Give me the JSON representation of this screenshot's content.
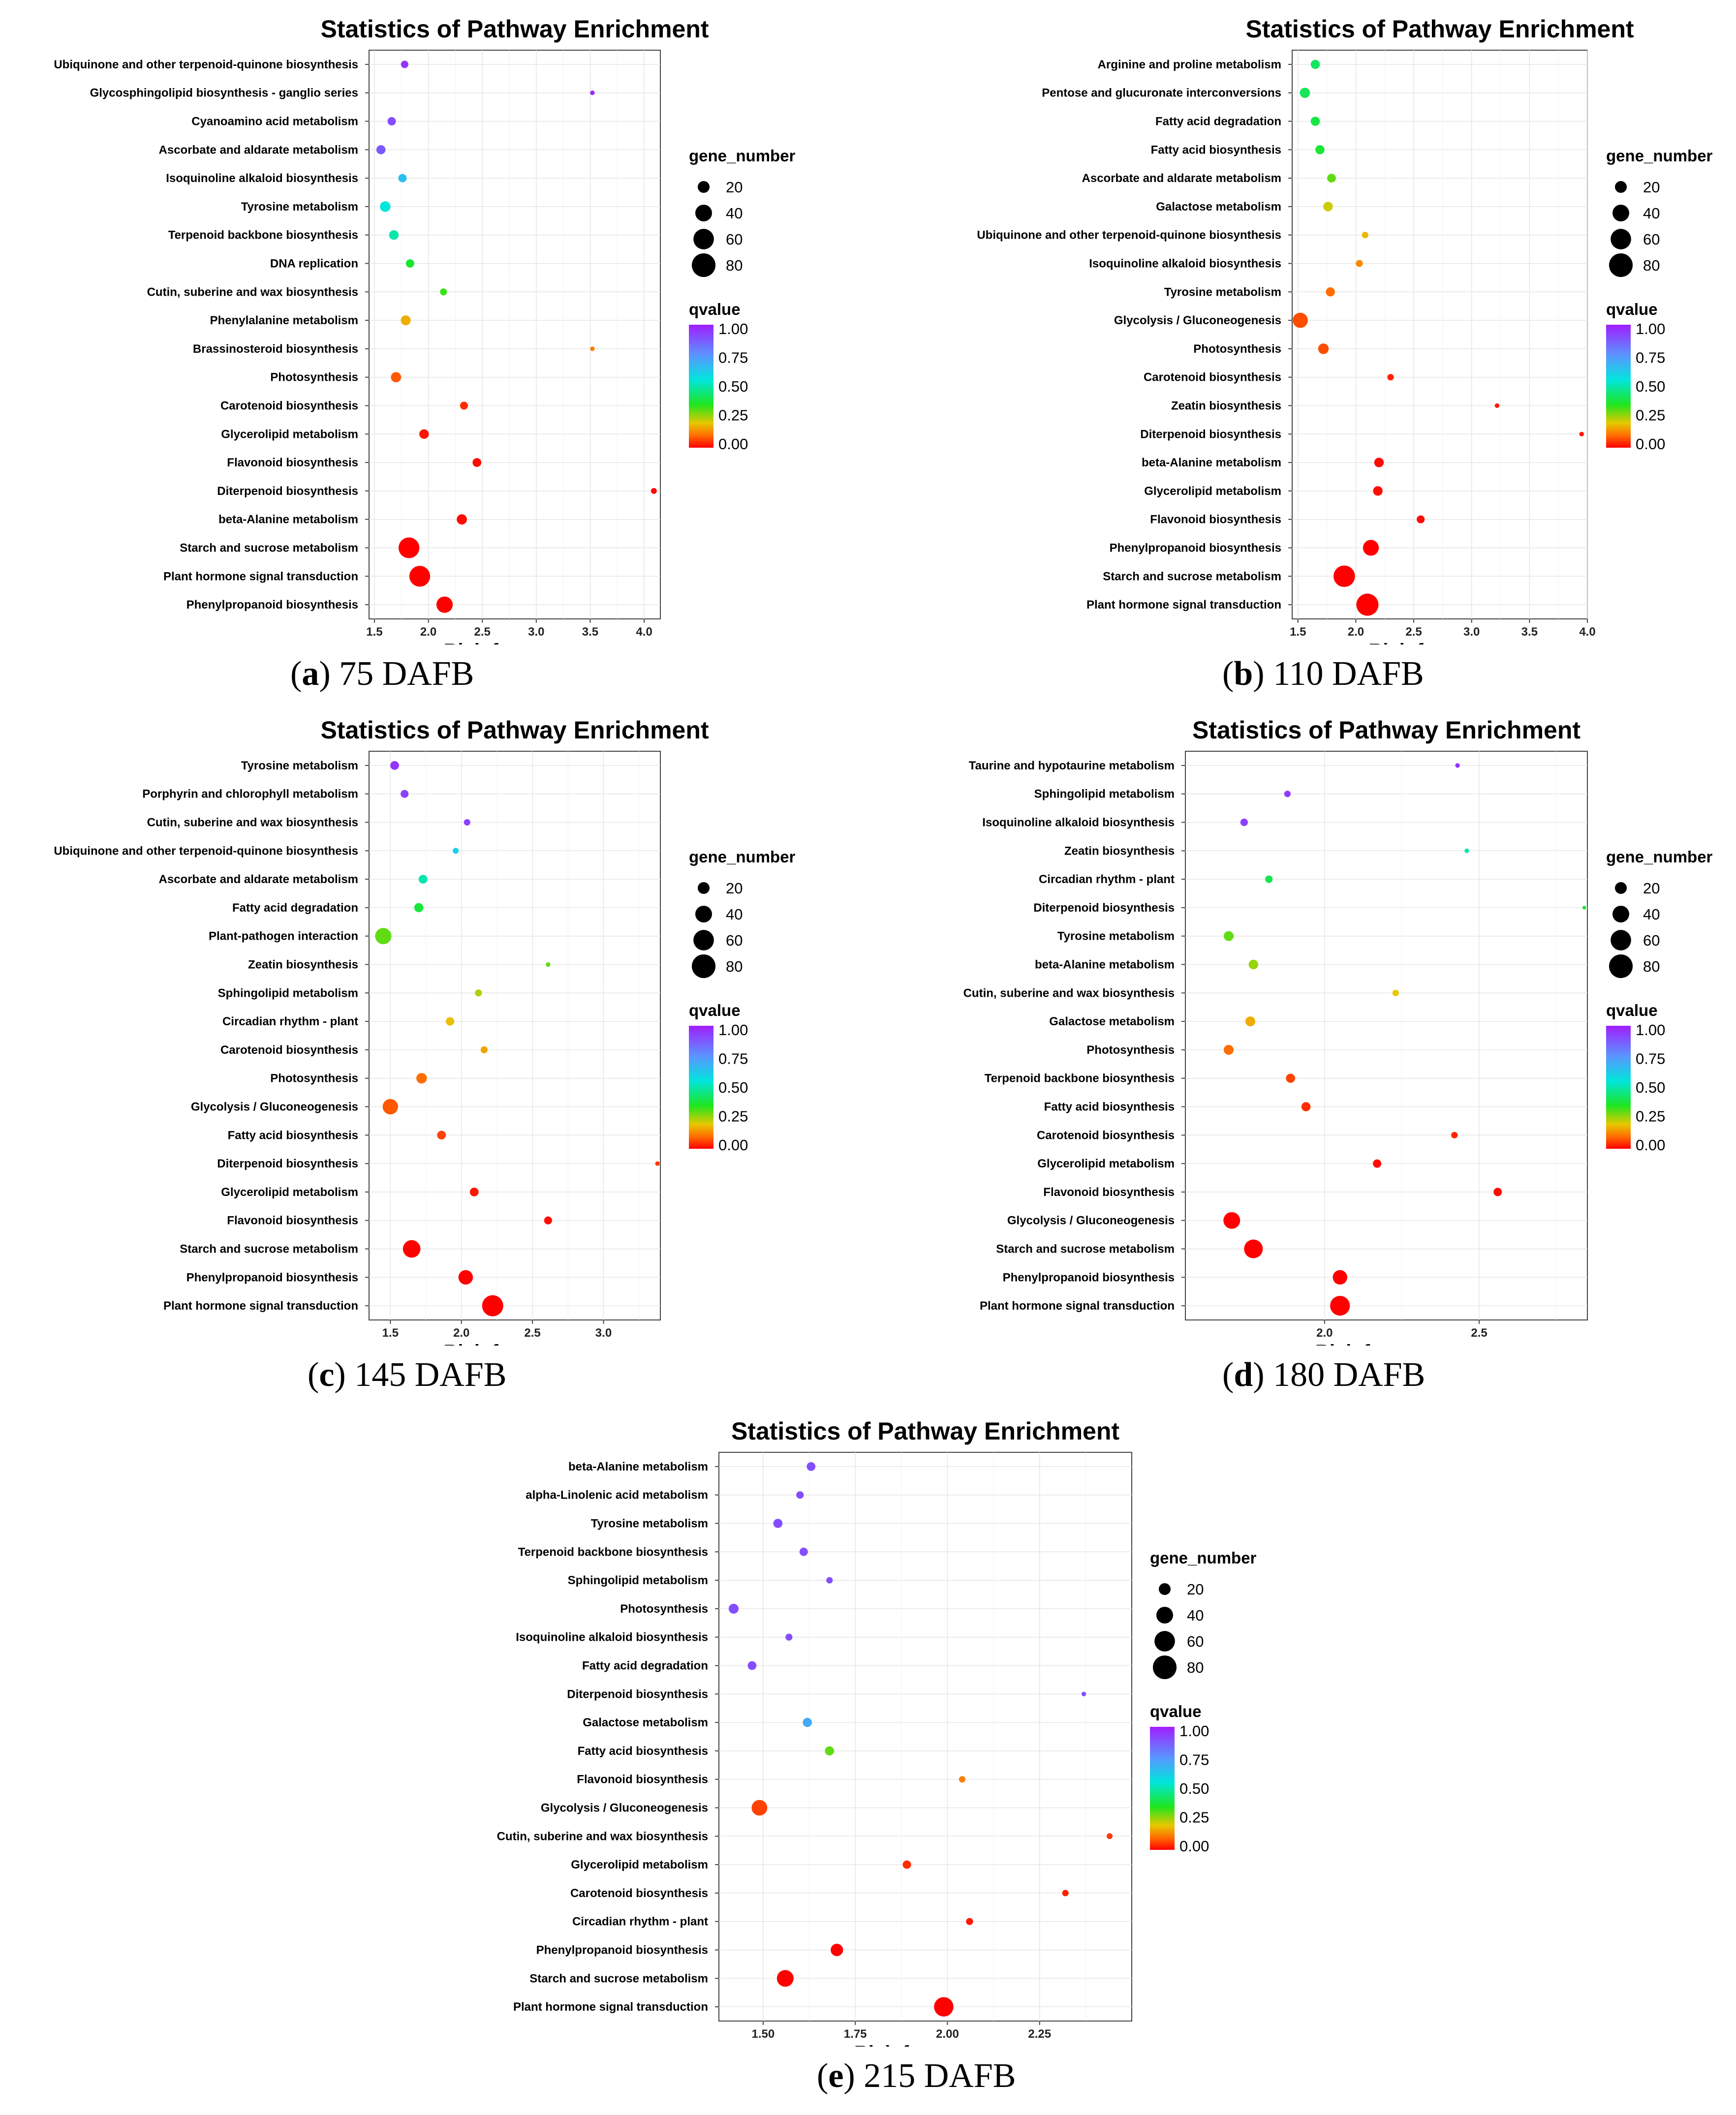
{
  "chart_data": [
    {
      "id": "a",
      "type": "scatter",
      "title": "Statistics of Pathway Enrichment",
      "xlabel": "Rich factor",
      "ylabel": "",
      "xlim": [
        1.45,
        4.15
      ],
      "xticks": [
        "1.5",
        "2.0",
        "2.5",
        "3.0",
        "3.5",
        "4.0"
      ],
      "caption_letter": "a",
      "caption_text": "75 DAFB",
      "size_legend_title": "gene_number",
      "size_legend_values": [
        "20",
        "40",
        "60",
        "80"
      ],
      "color_legend_title": "qvalue",
      "color_legend_ticks": [
        "1.00",
        "0.75",
        "0.50",
        "0.25",
        "0.00"
      ],
      "grid": true,
      "legend_position": "right",
      "points": [
        {
          "pathway": "Ubiquinone and other terpenoid-quinone biosynthesis",
          "rich_factor": 1.78,
          "gene_number": 8,
          "qvalue": 0.95
        },
        {
          "pathway": "Glycosphingolipid biosynthesis - ganglio series",
          "rich_factor": 3.52,
          "gene_number": 3,
          "qvalue": 0.97
        },
        {
          "pathway": "Cyanoamino acid metabolism",
          "rich_factor": 1.66,
          "gene_number": 10,
          "qvalue": 0.9
        },
        {
          "pathway": "Ascorbate and aldarate metabolism",
          "rich_factor": 1.56,
          "gene_number": 12,
          "qvalue": 0.88
        },
        {
          "pathway": "Isoquinoline alkaloid biosynthesis",
          "rich_factor": 1.76,
          "gene_number": 10,
          "qvalue": 0.65
        },
        {
          "pathway": "Tyrosine metabolism",
          "rich_factor": 1.6,
          "gene_number": 16,
          "qvalue": 0.55
        },
        {
          "pathway": "Terpenoid backbone biosynthesis",
          "rich_factor": 1.68,
          "gene_number": 13,
          "qvalue": 0.5
        },
        {
          "pathway": "DNA replication",
          "rich_factor": 1.83,
          "gene_number": 10,
          "qvalue": 0.37
        },
        {
          "pathway": "Cutin, suberine and wax biosynthesis",
          "rich_factor": 2.14,
          "gene_number": 7,
          "qvalue": 0.33
        },
        {
          "pathway": "Phenylalanine metabolism",
          "rich_factor": 1.79,
          "gene_number": 14,
          "qvalue": 0.17
        },
        {
          "pathway": "Brassinosteroid biosynthesis",
          "rich_factor": 3.52,
          "gene_number": 3,
          "qvalue": 0.12
        },
        {
          "pathway": "Photosynthesis",
          "rich_factor": 1.7,
          "gene_number": 15,
          "qvalue": 0.08
        },
        {
          "pathway": "Carotenoid biosynthesis",
          "rich_factor": 2.33,
          "gene_number": 9,
          "qvalue": 0.04
        },
        {
          "pathway": "Glycerolipid metabolism",
          "rich_factor": 1.96,
          "gene_number": 13,
          "qvalue": 0.02
        },
        {
          "pathway": "Flavonoid biosynthesis",
          "rich_factor": 2.45,
          "gene_number": 11,
          "qvalue": 0.01
        },
        {
          "pathway": "Diterpenoid biosynthesis",
          "rich_factor": 4.09,
          "gene_number": 5,
          "qvalue": 0.01
        },
        {
          "pathway": "beta-Alanine metabolism",
          "rich_factor": 2.31,
          "gene_number": 15,
          "qvalue": 0.01
        },
        {
          "pathway": "Starch and sucrose metabolism",
          "rich_factor": 1.82,
          "gene_number": 62,
          "qvalue": 0.0
        },
        {
          "pathway": "Plant hormone signal transduction",
          "rich_factor": 1.92,
          "gene_number": 62,
          "qvalue": 0.0
        },
        {
          "pathway": "Phenylpropanoid biosynthesis",
          "rich_factor": 2.15,
          "gene_number": 38,
          "qvalue": 0.0
        }
      ]
    },
    {
      "id": "b",
      "type": "scatter",
      "title": "Statistics of Pathway Enrichment",
      "xlabel": "Rich factor",
      "ylabel": "",
      "xlim": [
        1.45,
        4.0
      ],
      "xticks": [
        "1.5",
        "2.0",
        "2.5",
        "3.0",
        "3.5",
        "4.0"
      ],
      "caption_letter": "b",
      "caption_text": "110 DAFB",
      "size_legend_title": "gene_number",
      "size_legend_values": [
        "20",
        "40",
        "60",
        "80"
      ],
      "color_legend_title": "qvalue",
      "color_legend_ticks": [
        "1.00",
        "0.75",
        "0.50",
        "0.25",
        "0.00"
      ],
      "grid": true,
      "legend_position": "right",
      "points": [
        {
          "pathway": "Arginine and proline metabolism",
          "rich_factor": 1.65,
          "gene_number": 12,
          "qvalue": 0.42
        },
        {
          "pathway": "Pentose and glucuronate interconversions",
          "rich_factor": 1.56,
          "gene_number": 15,
          "qvalue": 0.41
        },
        {
          "pathway": "Fatty acid degradation",
          "rich_factor": 1.65,
          "gene_number": 12,
          "qvalue": 0.39
        },
        {
          "pathway": "Fatty acid biosynthesis",
          "rich_factor": 1.69,
          "gene_number": 12,
          "qvalue": 0.37
        },
        {
          "pathway": "Ascorbate and aldarate metabolism",
          "rich_factor": 1.79,
          "gene_number": 11,
          "qvalue": 0.3
        },
        {
          "pathway": "Galactose metabolism",
          "rich_factor": 1.76,
          "gene_number": 13,
          "qvalue": 0.22
        },
        {
          "pathway": "Ubiquinone and other terpenoid-quinone biosynthesis",
          "rich_factor": 2.08,
          "gene_number": 6,
          "qvalue": 0.18
        },
        {
          "pathway": "Isoquinoline alkaloid biosynthesis",
          "rich_factor": 2.03,
          "gene_number": 7,
          "qvalue": 0.13
        },
        {
          "pathway": "Tyrosine metabolism",
          "rich_factor": 1.78,
          "gene_number": 12,
          "qvalue": 0.1
        },
        {
          "pathway": "Glycolysis / Gluconeogenesis",
          "rich_factor": 1.52,
          "gene_number": 33,
          "qvalue": 0.07
        },
        {
          "pathway": "Photosynthesis",
          "rich_factor": 1.72,
          "gene_number": 16,
          "qvalue": 0.07
        },
        {
          "pathway": "Carotenoid biosynthesis",
          "rich_factor": 2.3,
          "gene_number": 6,
          "qvalue": 0.03
        },
        {
          "pathway": "Zeatin biosynthesis",
          "rich_factor": 3.22,
          "gene_number": 3,
          "qvalue": 0.02
        },
        {
          "pathway": "Diterpenoid biosynthesis",
          "rich_factor": 3.95,
          "gene_number": 3,
          "qvalue": 0.02
        },
        {
          "pathway": "beta-Alanine metabolism",
          "rich_factor": 2.2,
          "gene_number": 13,
          "qvalue": 0.01
        },
        {
          "pathway": "Glycerolipid metabolism",
          "rich_factor": 2.19,
          "gene_number": 13,
          "qvalue": 0.01
        },
        {
          "pathway": "Flavonoid biosynthesis",
          "rich_factor": 2.56,
          "gene_number": 9,
          "qvalue": 0.01
        },
        {
          "pathway": "Phenylpropanoid biosynthesis",
          "rich_factor": 2.13,
          "gene_number": 36,
          "qvalue": 0.0
        },
        {
          "pathway": "Starch and sucrose metabolism",
          "rich_factor": 1.9,
          "gene_number": 66,
          "qvalue": 0.0
        },
        {
          "pathway": "Plant hormone signal transduction",
          "rich_factor": 2.1,
          "gene_number": 70,
          "qvalue": 0.0
        }
      ]
    },
    {
      "id": "c",
      "type": "scatter",
      "title": "Statistics of Pathway Enrichment",
      "xlabel": "Rich factor",
      "ylabel": "",
      "xlim": [
        1.35,
        3.4
      ],
      "xticks": [
        "1.5",
        "2.0",
        "2.5",
        "3.0"
      ],
      "caption_letter": "c",
      "caption_text": "145 DAFB",
      "size_legend_title": "gene_number",
      "size_legend_values": [
        "20",
        "40",
        "60",
        "80"
      ],
      "color_legend_title": "qvalue",
      "color_legend_ticks": [
        "1.00",
        "0.75",
        "0.50",
        "0.25",
        "0.00"
      ],
      "grid": true,
      "legend_position": "right",
      "points": [
        {
          "pathway": "Tyrosine metabolism",
          "rich_factor": 1.53,
          "gene_number": 11,
          "qvalue": 0.95
        },
        {
          "pathway": "Porphyrin and chlorophyll metabolism",
          "rich_factor": 1.6,
          "gene_number": 9,
          "qvalue": 0.93
        },
        {
          "pathway": "Cutin, suberine and wax biosynthesis",
          "rich_factor": 2.04,
          "gene_number": 6,
          "qvalue": 0.92
        },
        {
          "pathway": "Ubiquinone and other terpenoid-quinone biosynthesis",
          "rich_factor": 1.96,
          "gene_number": 5,
          "qvalue": 0.6
        },
        {
          "pathway": "Ascorbate and aldarate metabolism",
          "rich_factor": 1.73,
          "gene_number": 11,
          "qvalue": 0.5
        },
        {
          "pathway": "Fatty acid degradation",
          "rich_factor": 1.7,
          "gene_number": 12,
          "qvalue": 0.38
        },
        {
          "pathway": "Plant-pathogen interaction",
          "rich_factor": 1.45,
          "gene_number": 38,
          "qvalue": 0.3
        },
        {
          "pathway": "Zeatin biosynthesis",
          "rich_factor": 2.61,
          "gene_number": 3,
          "qvalue": 0.3
        },
        {
          "pathway": "Sphingolipid metabolism",
          "rich_factor": 2.12,
          "gene_number": 7,
          "qvalue": 0.24
        },
        {
          "pathway": "Circadian rhythm - plant",
          "rich_factor": 1.92,
          "gene_number": 10,
          "qvalue": 0.19
        },
        {
          "pathway": "Carotenoid biosynthesis",
          "rich_factor": 2.16,
          "gene_number": 7,
          "qvalue": 0.16
        },
        {
          "pathway": "Photosynthesis",
          "rich_factor": 1.72,
          "gene_number": 16,
          "qvalue": 0.1
        },
        {
          "pathway": "Glycolysis / Gluconeogenesis",
          "rich_factor": 1.5,
          "gene_number": 34,
          "qvalue": 0.08
        },
        {
          "pathway": "Fatty acid biosynthesis",
          "rich_factor": 1.86,
          "gene_number": 11,
          "qvalue": 0.06
        },
        {
          "pathway": "Diterpenoid biosynthesis",
          "rich_factor": 3.38,
          "gene_number": 3,
          "qvalue": 0.05
        },
        {
          "pathway": "Glycerolipid metabolism",
          "rich_factor": 2.09,
          "gene_number": 11,
          "qvalue": 0.02
        },
        {
          "pathway": "Flavonoid biosynthesis",
          "rich_factor": 2.61,
          "gene_number": 9,
          "qvalue": 0.01
        },
        {
          "pathway": "Starch and sucrose metabolism",
          "rich_factor": 1.65,
          "gene_number": 44,
          "qvalue": 0.0
        },
        {
          "pathway": "Phenylpropanoid biosynthesis",
          "rich_factor": 2.03,
          "gene_number": 30,
          "qvalue": 0.0
        },
        {
          "pathway": "Plant hormone signal transduction",
          "rich_factor": 2.22,
          "gene_number": 64,
          "qvalue": 0.0
        }
      ]
    },
    {
      "id": "d",
      "type": "scatter",
      "title": "Statistics of Pathway Enrichment",
      "xlabel": "Rich factor",
      "ylabel": "",
      "xlim": [
        1.55,
        2.85
      ],
      "xticks": [
        "2.0",
        "2.5"
      ],
      "caption_letter": "d",
      "caption_text": "180 DAFB",
      "size_legend_title": "gene_number",
      "size_legend_values": [
        "20",
        "40",
        "60",
        "80"
      ],
      "color_legend_title": "qvalue",
      "color_legend_ticks": [
        "1.00",
        "0.75",
        "0.50",
        "0.25",
        "0.00"
      ],
      "grid": true,
      "legend_position": "right",
      "points": [
        {
          "pathway": "Taurine and hypotaurine metabolism",
          "rich_factor": 2.43,
          "gene_number": 3,
          "qvalue": 0.96
        },
        {
          "pathway": "Sphingolipid metabolism",
          "rich_factor": 1.88,
          "gene_number": 6,
          "qvalue": 0.94
        },
        {
          "pathway": "Isoquinoline alkaloid biosynthesis",
          "rich_factor": 1.74,
          "gene_number": 8,
          "qvalue": 0.93
        },
        {
          "pathway": "Zeatin biosynthesis",
          "rich_factor": 2.46,
          "gene_number": 3,
          "qvalue": 0.5
        },
        {
          "pathway": "Circadian rhythm - plant",
          "rich_factor": 1.82,
          "gene_number": 8,
          "qvalue": 0.4
        },
        {
          "pathway": "Diterpenoid biosynthesis",
          "rich_factor": 2.84,
          "gene_number": 2,
          "qvalue": 0.38
        },
        {
          "pathway": "Tyrosine metabolism",
          "rich_factor": 1.69,
          "gene_number": 14,
          "qvalue": 0.3
        },
        {
          "pathway": "beta-Alanine metabolism",
          "rich_factor": 1.77,
          "gene_number": 13,
          "qvalue": 0.26
        },
        {
          "pathway": "Cutin, suberine and wax biosynthesis",
          "rich_factor": 2.23,
          "gene_number": 6,
          "qvalue": 0.2
        },
        {
          "pathway": "Galactose metabolism",
          "rich_factor": 1.76,
          "gene_number": 14,
          "qvalue": 0.17
        },
        {
          "pathway": "Photosynthesis",
          "rich_factor": 1.69,
          "gene_number": 14,
          "qvalue": 0.1
        },
        {
          "pathway": "Terpenoid backbone biosynthesis",
          "rich_factor": 1.89,
          "gene_number": 12,
          "qvalue": 0.06
        },
        {
          "pathway": "Fatty acid biosynthesis",
          "rich_factor": 1.94,
          "gene_number": 12,
          "qvalue": 0.04
        },
        {
          "pathway": "Carotenoid biosynthesis",
          "rich_factor": 2.42,
          "gene_number": 6,
          "qvalue": 0.03
        },
        {
          "pathway": "Glycerolipid metabolism",
          "rich_factor": 2.17,
          "gene_number": 10,
          "qvalue": 0.01
        },
        {
          "pathway": "Flavonoid biosynthesis",
          "rich_factor": 2.56,
          "gene_number": 10,
          "qvalue": 0.01
        },
        {
          "pathway": "Glycolysis / Gluconeogenesis",
          "rich_factor": 1.7,
          "gene_number": 40,
          "qvalue": 0.0
        },
        {
          "pathway": "Starch and sucrose metabolism",
          "rich_factor": 1.77,
          "gene_number": 50,
          "qvalue": 0.0
        },
        {
          "pathway": "Phenylpropanoid biosynthesis",
          "rich_factor": 2.05,
          "gene_number": 30,
          "qvalue": 0.0
        },
        {
          "pathway": "Plant hormone signal transduction",
          "rich_factor": 2.05,
          "gene_number": 56,
          "qvalue": 0.0
        }
      ]
    },
    {
      "id": "e",
      "type": "scatter",
      "title": "Statistics of Pathway Enrichment",
      "xlabel": "Rich factor",
      "ylabel": "",
      "xlim": [
        1.38,
        2.5
      ],
      "xticks": [
        "1.50",
        "1.75",
        "2.00",
        "2.25"
      ],
      "caption_letter": "e",
      "caption_text": "215 DAFB",
      "size_legend_title": "gene_number",
      "size_legend_values": [
        "20",
        "40",
        "60",
        "80"
      ],
      "color_legend_title": "qvalue",
      "color_legend_ticks": [
        "1.00",
        "0.75",
        "0.50",
        "0.25",
        "0.00"
      ],
      "grid": true,
      "legend_position": "right",
      "points": [
        {
          "pathway": "beta-Alanine metabolism",
          "rich_factor": 1.63,
          "gene_number": 11,
          "qvalue": 0.9
        },
        {
          "pathway": "alpha-Linolenic acid metabolism",
          "rich_factor": 1.6,
          "gene_number": 8,
          "qvalue": 0.9
        },
        {
          "pathway": "Tyrosine metabolism",
          "rich_factor": 1.54,
          "gene_number": 12,
          "qvalue": 0.9
        },
        {
          "pathway": "Terpenoid backbone biosynthesis",
          "rich_factor": 1.61,
          "gene_number": 10,
          "qvalue": 0.9
        },
        {
          "pathway": "Sphingolipid metabolism",
          "rich_factor": 1.68,
          "gene_number": 6,
          "qvalue": 0.9
        },
        {
          "pathway": "Photosynthesis",
          "rich_factor": 1.42,
          "gene_number": 14,
          "qvalue": 0.9
        },
        {
          "pathway": "Isoquinoline alkaloid biosynthesis",
          "rich_factor": 1.57,
          "gene_number": 7,
          "qvalue": 0.9
        },
        {
          "pathway": "Fatty acid degradation",
          "rich_factor": 1.47,
          "gene_number": 11,
          "qvalue": 0.9
        },
        {
          "pathway": "Diterpenoid biosynthesis",
          "rich_factor": 2.37,
          "gene_number": 3,
          "qvalue": 0.9
        },
        {
          "pathway": "Galactose metabolism",
          "rich_factor": 1.62,
          "gene_number": 12,
          "qvalue": 0.7
        },
        {
          "pathway": "Fatty acid biosynthesis",
          "rich_factor": 1.68,
          "gene_number": 12,
          "qvalue": 0.3
        },
        {
          "pathway": "Flavonoid biosynthesis",
          "rich_factor": 2.04,
          "gene_number": 6,
          "qvalue": 0.12
        },
        {
          "pathway": "Glycolysis / Gluconeogenesis",
          "rich_factor": 1.49,
          "gene_number": 35,
          "qvalue": 0.06
        },
        {
          "pathway": "Cutin, suberine and wax biosynthesis",
          "rich_factor": 2.44,
          "gene_number": 5,
          "qvalue": 0.05
        },
        {
          "pathway": "Glycerolipid metabolism",
          "rich_factor": 1.89,
          "gene_number": 10,
          "qvalue": 0.04
        },
        {
          "pathway": "Carotenoid biosynthesis",
          "rich_factor": 2.32,
          "gene_number": 6,
          "qvalue": 0.03
        },
        {
          "pathway": "Circadian rhythm - plant",
          "rich_factor": 2.06,
          "gene_number": 7,
          "qvalue": 0.02
        },
        {
          "pathway": "Phenylpropanoid biosynthesis",
          "rich_factor": 1.7,
          "gene_number": 22,
          "qvalue": 0.0
        },
        {
          "pathway": "Starch and sucrose metabolism",
          "rich_factor": 1.56,
          "gene_number": 40,
          "qvalue": 0.0
        },
        {
          "pathway": "Plant hormone signal transduction",
          "rich_factor": 1.99,
          "gene_number": 54,
          "qvalue": 0.0
        }
      ]
    }
  ]
}
